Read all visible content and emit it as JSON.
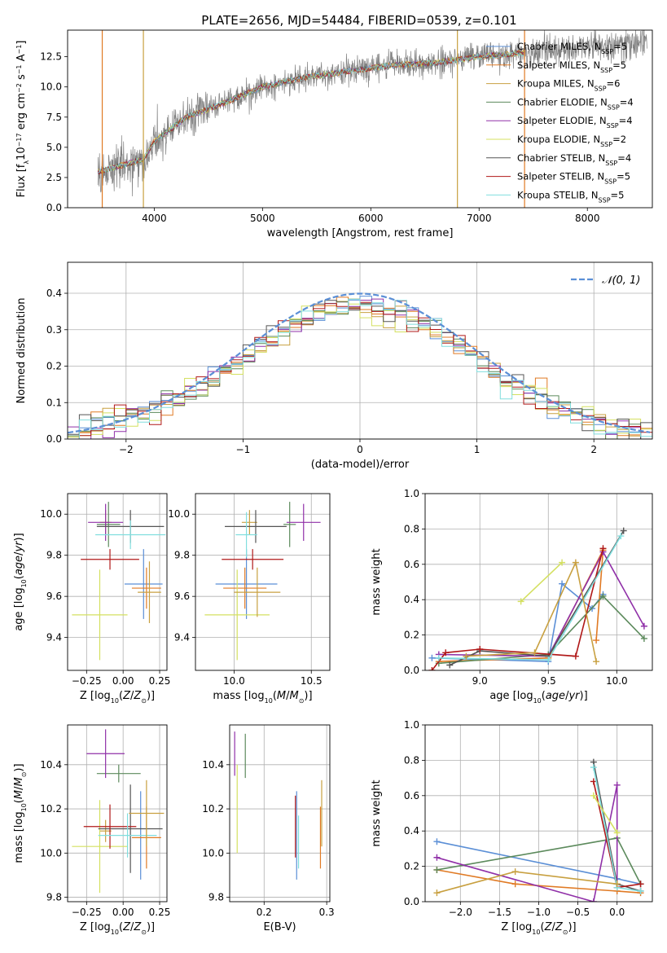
{
  "figure": {
    "title": "PLATE=2656, MJD=54484, FIBERID=0539, z=0.101",
    "series": [
      {
        "name": "Chabrier MILES",
        "name_html": "Chabrier MILES, N<tspan font-size=\"8\" baseline-shift=\"sub\">SSP</tspan>=5",
        "color": "#5b8fd6"
      },
      {
        "name": "Salpeter MILES",
        "name_html": "Salpeter MILES, N<tspan font-size=\"8\" baseline-shift=\"sub\">SSP</tspan>=5",
        "color": "#e07a24"
      },
      {
        "name": "Kroupa MILES",
        "name_html": "Kroupa MILES, N<tspan font-size=\"8\" baseline-shift=\"sub\">SSP</tspan>=6",
        "color": "#c8a040"
      },
      {
        "name": "Chabrier ELODIE",
        "name_html": "Chabrier ELODIE, N<tspan font-size=\"8\" baseline-shift=\"sub\">SSP</tspan>=4",
        "color": "#5c8a5c"
      },
      {
        "name": "Salpeter ELODIE",
        "name_html": "Salpeter ELODIE, N<tspan font-size=\"8\" baseline-shift=\"sub\">SSP</tspan>=4",
        "color": "#9030a8"
      },
      {
        "name": "Kroupa ELODIE",
        "name_html": "Kroupa ELODIE, N<tspan font-size=\"8\" baseline-shift=\"sub\">SSP</tspan>=2",
        "color": "#d4e060"
      },
      {
        "name": "Chabrier STELIB",
        "name_html": "Chabrier STELIB, N<tspan font-size=\"8\" baseline-shift=\"sub\">SSP</tspan>=4",
        "color": "#555555"
      },
      {
        "name": "Salpeter STELIB",
        "name_html": "Salpeter STELIB, N<tspan font-size=\"8\" baseline-shift=\"sub\">SSP</tspan>=5",
        "color": "#b01818"
      },
      {
        "name": "Kroupa STELIB",
        "name_html": "Kroupa STELIB, N<tspan font-size=\"8\" baseline-shift=\"sub\">SSP</tspan>=5",
        "color": "#80dede"
      }
    ]
  },
  "chart_data": [
    {
      "id": "spectrum",
      "type": "line",
      "xlabel": "wavelength [Angstrom, rest frame]",
      "ylabel_html": "Flux [f<tspan font-size=\"8\" baseline-shift=\"sub\">λ</tspan>10<tspan font-size=\"8\" baseline-shift=\"super\">−17</tspan> erg cm<tspan font-size=\"8\" baseline-shift=\"super\">−2</tspan> s<tspan font-size=\"8\" baseline-shift=\"super\">−1</tspan> A<tspan font-size=\"8\" baseline-shift=\"super\">−1</tspan>]",
      "xlim": [
        3200,
        8600
      ],
      "ylim": [
        0,
        14.7
      ],
      "xticks": [
        4000,
        5000,
        6000,
        7000,
        8000
      ],
      "yticks": [
        0.0,
        2.5,
        5.0,
        7.5,
        10.0,
        12.5
      ],
      "ytick_labels": [
        "0.0",
        "2.5",
        "5.0",
        "7.5",
        "10.0",
        "12.5"
      ],
      "grid": false,
      "legend": "upper right",
      "data_color": "#808080",
      "data_extent": [
        3480,
        8550
      ],
      "continuum": [
        [
          3480,
          3.0
        ],
        [
          3700,
          3.5
        ],
        [
          3900,
          4.0
        ],
        [
          4000,
          5.5
        ],
        [
          4300,
          7.5
        ],
        [
          4600,
          8.5
        ],
        [
          5000,
          10.0
        ],
        [
          5400,
          10.8
        ],
        [
          5800,
          11.3
        ],
        [
          6200,
          11.8
        ],
        [
          6600,
          12.0
        ],
        [
          7000,
          12.5
        ],
        [
          7400,
          12.8
        ],
        [
          7800,
          13.2
        ],
        [
          8200,
          13.4
        ],
        [
          8550,
          13.8
        ]
      ],
      "model_extent": [
        3480,
        7420
      ],
      "vertical_features": [
        {
          "x": 3520,
          "color": "#e07a24"
        },
        {
          "x": 3900,
          "color": "#c8a040"
        },
        {
          "x": 6800,
          "color": "#c8a040"
        },
        {
          "x": 7420,
          "color": "#e07a24"
        }
      ]
    },
    {
      "id": "residuals",
      "type": "step",
      "xlabel": "(data-model)/error",
      "ylabel": "Normed distribution",
      "xlim": [
        -2.5,
        2.5
      ],
      "ylim": [
        0,
        0.485
      ],
      "xticks": [
        -2,
        -1,
        0,
        1,
        2
      ],
      "xtick_labels": [
        "−2",
        "−1",
        "0",
        "1",
        "2"
      ],
      "yticks": [
        0.0,
        0.1,
        0.2,
        0.3,
        0.4
      ],
      "ytick_labels": [
        "0.0",
        "0.1",
        "0.2",
        "0.3",
        "0.4"
      ],
      "grid": true,
      "legend_label": "𝒩(0, 1)",
      "bin_width": 0.1,
      "normal_curve": {
        "mean": 0,
        "sigma": 1,
        "color": "#5b8fd6"
      }
    },
    {
      "id": "age-vs-Z",
      "type": "errorbar",
      "xlabel_html": "Z [log<tspan font-size=\"8\" baseline-shift=\"sub\">10</tspan>(<tspan font-style=\"italic\">Z</tspan>/<tspan font-style=\"italic\">Z</tspan><tspan font-size=\"8\" baseline-shift=\"sub\">⊙</tspan>)]",
      "ylabel_html": "age  [log<tspan font-size=\"8\" baseline-shift=\"sub\">10</tspan>(<tspan font-style=\"italic\">age</tspan>/<tspan font-style=\"italic\">yr</tspan>)]",
      "xlim": [
        -0.38,
        0.3
      ],
      "ylim": [
        9.24,
        10.1
      ],
      "xticks": [
        -0.25,
        0.0,
        0.25
      ],
      "xtick_labels": [
        "−0.25",
        "0.00",
        "0.25"
      ],
      "yticks": [
        9.4,
        9.6,
        9.8,
        10.0
      ],
      "ytick_labels": [
        "9.4",
        "9.6",
        "9.8",
        "10.0"
      ],
      "grid": true,
      "points": [
        {
          "s": 0,
          "x": 0.14,
          "xe": 0.13,
          "y": 9.66,
          "ye": 0.17
        },
        {
          "s": 1,
          "x": 0.16,
          "xe": 0.1,
          "y": 9.64,
          "ye": 0.1
        },
        {
          "s": 2,
          "x": -0.12,
          "xe": 0.04,
          "y": 9.96,
          "ye": 0.06
        },
        {
          "s": 3,
          "x": -0.1,
          "xe": 0.08,
          "y": 9.95,
          "ye": 0.11
        },
        {
          "s": 4,
          "x": -0.12,
          "xe": 0.12,
          "y": 9.96,
          "ye": 0.09
        },
        {
          "s": 5,
          "x": -0.16,
          "xe": 0.19,
          "y": 9.51,
          "ye": 0.22
        },
        {
          "s": 6,
          "x": 0.05,
          "xe": 0.23,
          "y": 9.94,
          "ye": 0.08
        },
        {
          "s": 7,
          "x": -0.09,
          "xe": 0.2,
          "y": 9.78,
          "ye": 0.05
        },
        {
          "s": 8,
          "x": 0.05,
          "xe": 0.24,
          "y": 9.9,
          "ye": 0.07
        },
        {
          "s": 2,
          "x": 0.18,
          "xe": 0.08,
          "y": 9.62,
          "ye": 0.15
        }
      ]
    },
    {
      "id": "age-vs-mass",
      "type": "errorbar",
      "xlabel_html": "mass [log<tspan font-size=\"8\" baseline-shift=\"sub\">10</tspan>(<tspan font-style=\"italic\">M</tspan>/<tspan font-style=\"italic\">M</tspan><tspan font-size=\"8\" baseline-shift=\"sub\">⊙</tspan>)]",
      "ylabel": "",
      "xlim": [
        9.75,
        10.62
      ],
      "ylim": [
        9.24,
        10.1
      ],
      "xticks": [
        10.0,
        10.5
      ],
      "xtick_labels": [
        "10.0",
        "10.5"
      ],
      "yticks": [
        9.4,
        9.6,
        9.8,
        10.0
      ],
      "ytick_labels": [
        "9.4",
        "9.6",
        "9.8",
        "10.0"
      ],
      "grid": true,
      "points": [
        {
          "s": 0,
          "x": 10.08,
          "xe": 0.2,
          "y": 9.66,
          "ye": 0.17
        },
        {
          "s": 1,
          "x": 10.07,
          "xe": 0.14,
          "y": 9.64,
          "ye": 0.1
        },
        {
          "s": 2,
          "x": 10.1,
          "xe": 0.05,
          "y": 9.96,
          "ye": 0.06
        },
        {
          "s": 3,
          "x": 10.36,
          "xe": 0.04,
          "y": 9.95,
          "ye": 0.11
        },
        {
          "s": 4,
          "x": 10.45,
          "xe": 0.11,
          "y": 9.96,
          "ye": 0.09
        },
        {
          "s": 5,
          "x": 10.02,
          "xe": 0.21,
          "y": 9.51,
          "ye": 0.22
        },
        {
          "s": 6,
          "x": 10.14,
          "xe": 0.2,
          "y": 9.94,
          "ye": 0.08
        },
        {
          "s": 7,
          "x": 10.12,
          "xe": 0.2,
          "y": 9.78,
          "ye": 0.05
        },
        {
          "s": 8,
          "x": 10.08,
          "xe": 0.07,
          "y": 9.9,
          "ye": 0.11
        },
        {
          "s": 2,
          "x": 10.15,
          "xe": 0.15,
          "y": 9.62,
          "ye": 0.12
        }
      ]
    },
    {
      "id": "weight-vs-age",
      "type": "line",
      "xlabel_html": "age  [log<tspan font-size=\"8\" baseline-shift=\"sub\">10</tspan>(<tspan font-style=\"italic\">age</tspan>/<tspan font-style=\"italic\">yr</tspan>)]",
      "ylabel": "mass weight",
      "xlim": [
        8.6,
        10.26
      ],
      "ylim": [
        0.0,
        1.0
      ],
      "xticks": [
        9.0,
        9.5,
        10.0
      ],
      "xtick_labels": [
        "9.0",
        "9.5",
        "10.0"
      ],
      "yticks": [
        0.0,
        0.2,
        0.4,
        0.6,
        0.8,
        1.0
      ],
      "ytick_labels": [
        "0.0",
        "0.2",
        "0.4",
        "0.6",
        "0.8",
        "1.0"
      ],
      "grid": true,
      "lines": [
        {
          "s": 0,
          "pts": [
            [
              8.65,
              0.07
            ],
            [
              9.5,
              0.05
            ],
            [
              9.6,
              0.49
            ],
            [
              9.82,
              0.35
            ],
            [
              9.9,
              0.43
            ]
          ]
        },
        {
          "s": 1,
          "pts": [
            [
              8.7,
              0.05
            ],
            [
              9.5,
              0.07
            ],
            [
              9.9,
              0.68
            ],
            [
              9.85,
              0.17
            ]
          ]
        },
        {
          "s": 3,
          "pts": [
            [
              8.7,
              0.04
            ],
            [
              9.5,
              0.09
            ],
            [
              9.9,
              0.42
            ],
            [
              10.2,
              0.18
            ]
          ]
        },
        {
          "s": 4,
          "pts": [
            [
              8.7,
              0.09
            ],
            [
              9.5,
              0.08
            ],
            [
              9.9,
              0.67
            ],
            [
              10.2,
              0.25
            ]
          ]
        },
        {
          "s": 5,
          "pts": [
            [
              9.3,
              0.39
            ],
            [
              9.6,
              0.61
            ]
          ]
        },
        {
          "s": 6,
          "pts": [
            [
              8.78,
              0.03
            ],
            [
              9.0,
              0.11
            ],
            [
              9.5,
              0.08
            ],
            [
              10.05,
              0.79
            ]
          ]
        },
        {
          "s": 7,
          "pts": [
            [
              8.65,
              0.0
            ],
            [
              8.75,
              0.1
            ],
            [
              9.0,
              0.12
            ],
            [
              9.7,
              0.08
            ],
            [
              9.9,
              0.69
            ]
          ]
        },
        {
          "s": 8,
          "pts": [
            [
              8.7,
              0.07
            ],
            [
              9.5,
              0.06
            ],
            [
              10.03,
              0.76
            ]
          ]
        },
        {
          "s": 2,
          "pts": [
            [
              8.9,
              0.08
            ],
            [
              9.4,
              0.1
            ],
            [
              9.7,
              0.61
            ],
            [
              9.85,
              0.05
            ]
          ]
        }
      ]
    },
    {
      "id": "mass-vs-Z",
      "type": "errorbar",
      "xlabel_html": "Z [log<tspan font-size=\"8\" baseline-shift=\"sub\">10</tspan>(<tspan font-style=\"italic\">Z</tspan>/<tspan font-style=\"italic\">Z</tspan><tspan font-size=\"8\" baseline-shift=\"sub\">⊙</tspan>)]",
      "ylabel_html": "mass [log<tspan font-size=\"8\" baseline-shift=\"sub\">10</tspan>(<tspan font-style=\"italic\">M</tspan>/<tspan font-style=\"italic\">M</tspan><tspan font-size=\"8\" baseline-shift=\"sub\">⊙</tspan>)]",
      "xlim": [
        -0.38,
        0.3
      ],
      "ylim": [
        9.78,
        10.58
      ],
      "xticks": [
        -0.25,
        0.0,
        0.25
      ],
      "xtick_labels": [
        "−0.25",
        "0.00",
        "0.25"
      ],
      "yticks": [
        9.8,
        10.0,
        10.2,
        10.4
      ],
      "ytick_labels": [
        "9.8",
        "10.0",
        "10.2",
        "10.4"
      ],
      "grid": true,
      "points": [
        {
          "s": 0,
          "x": 0.12,
          "xe": 0.0,
          "y": 10.08,
          "ye": 0.2
        },
        {
          "s": 1,
          "x": 0.16,
          "xe": 0.1,
          "y": 10.07,
          "ye": 0.14
        },
        {
          "s": 2,
          "x": -0.12,
          "xe": 0.04,
          "y": 10.1,
          "ye": 0.05
        },
        {
          "s": 3,
          "x": -0.03,
          "xe": 0.15,
          "y": 10.36,
          "ye": 0.04
        },
        {
          "s": 4,
          "x": -0.12,
          "xe": 0.13,
          "y": 10.45,
          "ye": 0.11
        },
        {
          "s": 5,
          "x": -0.16,
          "xe": 0.19,
          "y": 10.03,
          "ye": 0.21
        },
        {
          "s": 6,
          "x": 0.05,
          "xe": 0.22,
          "y": 10.11,
          "ye": 0.2
        },
        {
          "s": 7,
          "x": -0.09,
          "xe": 0.18,
          "y": 10.12,
          "ye": 0.1
        },
        {
          "s": 8,
          "x": 0.03,
          "xe": 0.2,
          "y": 10.08,
          "ye": 0.1
        },
        {
          "s": 2,
          "x": 0.16,
          "xe": 0.12,
          "y": 10.18,
          "ye": 0.15
        }
      ]
    },
    {
      "id": "mass-vs-EBV",
      "type": "errorbar",
      "xlabel": "E(B-V)",
      "ylabel": "",
      "xlim": [
        0.145,
        0.305
      ],
      "ylim": [
        9.78,
        10.58
      ],
      "xticks": [
        0.2,
        0.3
      ],
      "xtick_labels": [
        "0.2",
        "0.3"
      ],
      "yticks": [
        9.8,
        10.0,
        10.2,
        10.4
      ],
      "ytick_labels": [
        "9.8",
        "10.0",
        "10.2",
        "10.4"
      ],
      "grid": true,
      "points": [
        {
          "s": 4,
          "x": 0.153,
          "xe": 0,
          "y": 10.45,
          "ye": 0.1
        },
        {
          "s": 5,
          "x": 0.157,
          "xe": 0,
          "y": 10.2,
          "ye": 0.2
        },
        {
          "s": 3,
          "x": 0.17,
          "xe": 0,
          "y": 10.44,
          "ye": 0.1
        },
        {
          "s": 0,
          "x": 0.252,
          "xe": 0,
          "y": 10.08,
          "ye": 0.2
        },
        {
          "s": 7,
          "x": 0.25,
          "xe": 0,
          "y": 10.12,
          "ye": 0.14
        },
        {
          "s": 1,
          "x": 0.29,
          "xe": 0,
          "y": 10.07,
          "ye": 0.14
        },
        {
          "s": 2,
          "x": 0.292,
          "xe": 0,
          "y": 10.18,
          "ye": 0.15
        },
        {
          "s": 8,
          "x": 0.255,
          "xe": 0,
          "y": 10.05,
          "ye": 0.12
        }
      ]
    },
    {
      "id": "weight-vs-Z",
      "type": "line",
      "xlabel_html": "Z [log<tspan font-size=\"8\" baseline-shift=\"sub\">10</tspan>(<tspan font-style=\"italic\">Z</tspan>/<tspan font-style=\"italic\">Z</tspan><tspan font-size=\"8\" baseline-shift=\"sub\">⊙</tspan>)]",
      "ylabel": "mass weight",
      "xlim": [
        -2.45,
        0.45
      ],
      "ylim": [
        0.0,
        1.0
      ],
      "xticks": [
        -2.0,
        -1.5,
        -1.0,
        -0.5,
        0.0
      ],
      "xtick_labels": [
        "−2.0",
        "−1.5",
        "−1.0",
        "−0.5",
        "0.0"
      ],
      "yticks": [
        0.0,
        0.2,
        0.4,
        0.6,
        0.8,
        1.0
      ],
      "ytick_labels": [
        "0.0",
        "0.2",
        "0.4",
        "0.6",
        "0.8",
        "1.0"
      ],
      "grid": true,
      "lines": [
        {
          "s": 0,
          "pts": [
            [
              -2.3,
              0.34
            ],
            [
              0.0,
              0.13
            ],
            [
              0.3,
              0.1
            ]
          ]
        },
        {
          "s": 1,
          "pts": [
            [
              -2.3,
              0.18
            ],
            [
              -1.3,
              0.1
            ],
            [
              0.0,
              0.06
            ],
            [
              0.3,
              0.05
            ]
          ]
        },
        {
          "s": 3,
          "pts": [
            [
              -2.3,
              0.18
            ],
            [
              0.0,
              0.36
            ],
            [
              0.3,
              0.1
            ]
          ]
        },
        {
          "s": 4,
          "pts": [
            [
              -2.3,
              0.25
            ],
            [
              -0.3,
              0.0
            ],
            [
              0.0,
              0.66
            ],
            [
              0.0,
              0.1
            ]
          ]
        },
        {
          "s": 6,
          "pts": [
            [
              -0.3,
              0.79
            ],
            [
              0.0,
              0.1
            ],
            [
              0.3,
              0.06
            ]
          ]
        },
        {
          "s": 7,
          "pts": [
            [
              -0.3,
              0.68
            ],
            [
              0.0,
              0.08
            ],
            [
              0.3,
              0.1
            ]
          ]
        },
        {
          "s": 8,
          "pts": [
            [
              -0.3,
              0.76
            ],
            [
              0.0,
              0.08
            ],
            [
              0.3,
              0.06
            ]
          ]
        },
        {
          "s": 2,
          "pts": [
            [
              -2.3,
              0.05
            ],
            [
              -1.3,
              0.17
            ],
            [
              0.0,
              0.1
            ]
          ]
        },
        {
          "s": 5,
          "pts": [
            [
              -0.3,
              0.6
            ],
            [
              0.0,
              0.39
            ]
          ]
        }
      ]
    }
  ]
}
